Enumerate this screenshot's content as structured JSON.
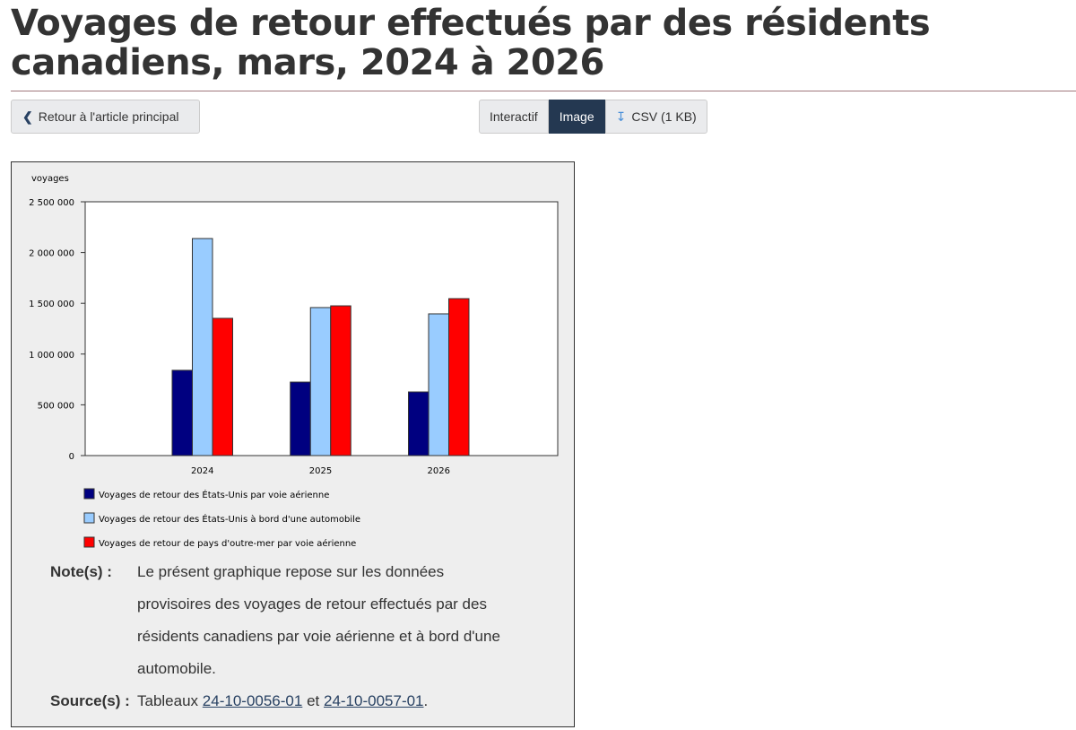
{
  "page": {
    "title": "Voyages de retour effectués par des résidents canadiens, mars, 2024 à 2026"
  },
  "toolbar": {
    "back_label": "Retour à l'article principal",
    "views": [
      "Interactif",
      "Image"
    ],
    "csv_label": "CSV (1 KB)",
    "active": "Image"
  },
  "chart_data": {
    "type": "bar",
    "ylabel": "voyages",
    "categories": [
      "2024",
      "2025",
      "2026"
    ],
    "ylim": [
      0,
      2500000
    ],
    "yticks": [
      "0",
      "500 000",
      "1 000 000",
      "1 500 000",
      "2 000 000",
      "2 500 000"
    ],
    "ytick_values": [
      0,
      500000,
      1000000,
      1500000,
      2000000,
      2500000
    ],
    "grid": false,
    "legend_position": "bottom",
    "series": [
      {
        "name": "Voyages de retour des États-Unis par voie aérienne",
        "color": "#000080",
        "values": [
          840000,
          724000,
          627000
        ]
      },
      {
        "name": "Voyages de retour des États-Unis à bord d'une automobile",
        "color": "#99ccff",
        "values": [
          2138000,
          1458000,
          1396000
        ]
      },
      {
        "name": "Voyages de retour de pays d'outre-mer par voie aérienne",
        "color": "#ff0000",
        "values": [
          1352000,
          1475000,
          1546000
        ]
      }
    ]
  },
  "notes": {
    "note_label": "Note(s) :",
    "note_lines": [
      "Le présent graphique repose sur les données",
      "provisoires des voyages de retour effectués par des",
      "résidents canadiens par voie aérienne et à bord d'une",
      "automobile."
    ],
    "source_label": "Source(s) :",
    "source_prefix": "Tableaux",
    "link1": "24-10-0056-01",
    "conj": "et",
    "link2": "24-10-0057-01",
    "end": "."
  }
}
